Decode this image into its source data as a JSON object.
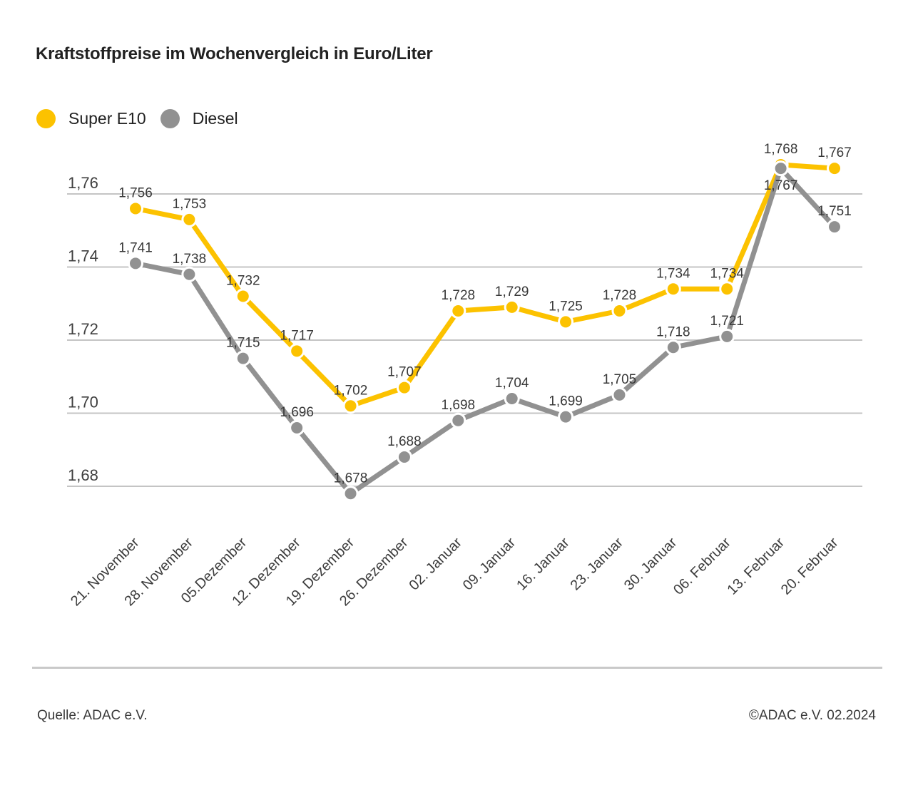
{
  "title": "Kraftstoffpreise im Wochenvergleich in Euro/Liter",
  "legend": {
    "items": [
      {
        "label": "Super E10",
        "color": "#FCC200"
      },
      {
        "label": "Diesel",
        "color": "#919191"
      }
    ]
  },
  "chart_data": {
    "type": "line",
    "title": "Kraftstoffpreise im Wochenvergleich in Euro/Liter",
    "unit": "Euro/Liter",
    "categories": [
      "21. November",
      "28. November",
      "05.Dezember",
      "12. Dezember",
      "19. Dezember",
      "26. Dezember",
      "02. Januar",
      "09. Januar",
      "16. Januar",
      "23. Januar",
      "30. Januar",
      "06. Februar",
      "13. Februar",
      "20. Februar"
    ],
    "series": [
      {
        "name": "Super E10",
        "color": "#FCC200",
        "values": [
          1.756,
          1.753,
          1.732,
          1.717,
          1.702,
          1.707,
          1.728,
          1.729,
          1.725,
          1.728,
          1.734,
          1.734,
          1.768,
          1.767
        ]
      },
      {
        "name": "Diesel",
        "color": "#919191",
        "values": [
          1.741,
          1.738,
          1.715,
          1.696,
          1.678,
          1.688,
          1.698,
          1.704,
          1.699,
          1.705,
          1.718,
          1.721,
          1.767,
          1.751
        ]
      }
    ],
    "y_ticks": [
      1.76,
      1.74,
      1.72,
      1.7,
      1.68
    ],
    "ylim": [
      1.668,
      1.776
    ],
    "grid": true,
    "decimal_format": "comma",
    "point_labels": true,
    "legend_position": "top-left",
    "x_label_rotation": -45
  },
  "footer": {
    "source": "Quelle: ADAC e.V.",
    "copyright": "©ADAC e.V. 02.2024"
  },
  "colors": {
    "grid": "#C4C4C4",
    "tick_label": "#3F3F3F",
    "point_label": "#383838",
    "x_label": "#3C3C3C",
    "divider": "#C9C9C9"
  }
}
